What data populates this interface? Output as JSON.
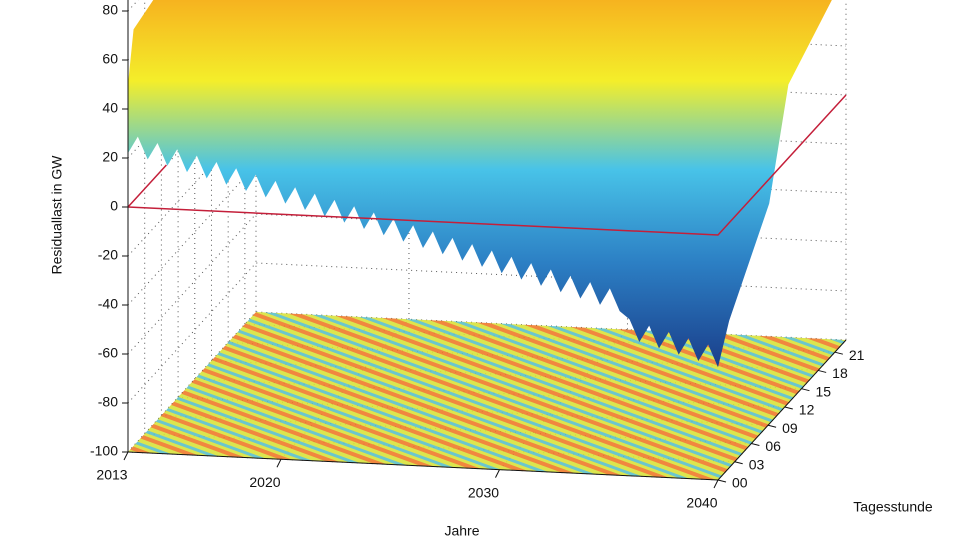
{
  "chart_data": {
    "type": "surface3d",
    "xlabel": "Jahre",
    "ylabel": "Tagesstunde",
    "zlabel": "Residuallast in GW",
    "xlim": [
      2013,
      2040
    ],
    "xticks": [
      2013,
      2020,
      2030,
      2040
    ],
    "ylim": [
      0,
      23
    ],
    "yticks": [
      {
        "value": 0,
        "label": "00"
      },
      {
        "value": 3,
        "label": "03"
      },
      {
        "value": 6,
        "label": "06"
      },
      {
        "value": 9,
        "label": "09"
      },
      12,
      15,
      18,
      21
    ],
    "zlim": [
      -100,
      80
    ],
    "zticks": [
      -100,
      -80,
      -60,
      -40,
      -20,
      0,
      20,
      40,
      60,
      80
    ],
    "grid": true
  }
}
